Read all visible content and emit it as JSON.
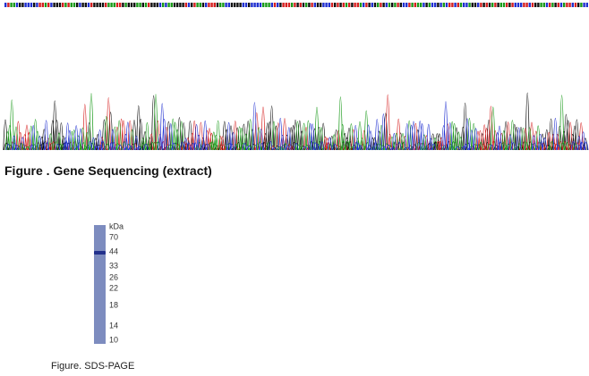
{
  "sequencing_figure": {
    "caption": "Figure . Gene Sequencing (extract)"
  },
  "sds_page_figure": {
    "unit": "kDa",
    "markers": [
      "70",
      "44",
      "33",
      "26",
      "22",
      "18",
      "14",
      "10"
    ],
    "caption": "Figure. SDS-PAGE"
  }
}
